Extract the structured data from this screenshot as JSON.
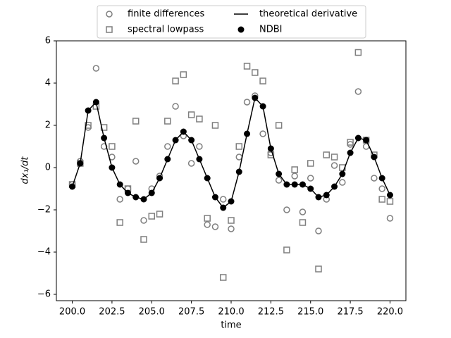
{
  "chart_data": {
    "type": "scatter",
    "x_label": "time",
    "y_label": "dx₁/dt",
    "x": [
      200.0,
      200.5,
      201.0,
      201.5,
      202.0,
      202.5,
      203.0,
      203.5,
      204.0,
      204.5,
      205.0,
      205.5,
      206.0,
      206.5,
      207.0,
      207.5,
      208.0,
      208.5,
      209.0,
      209.5,
      210.0,
      210.5,
      211.0,
      211.5,
      212.0,
      212.5,
      213.0,
      213.5,
      214.0,
      214.5,
      215.0,
      215.5,
      216.0,
      216.5,
      217.0,
      217.5,
      218.0,
      218.5,
      219.0,
      219.5,
      220.0
    ],
    "series": [
      {
        "name": "finite differences",
        "color": "#7f7f7f",
        "style": "hollow-circle",
        "values": [
          -0.8,
          0.3,
          1.9,
          4.7,
          1.0,
          0.5,
          -1.5,
          -1.0,
          0.3,
          -2.5,
          -1.0,
          -0.4,
          1.0,
          2.9,
          1.5,
          0.2,
          1.0,
          -2.7,
          -2.8,
          -1.5,
          -2.9,
          0.5,
          3.1,
          3.4,
          1.6,
          0.7,
          -0.6,
          -2.0,
          -0.4,
          -2.1,
          -0.5,
          -3.0,
          -1.5,
          0.1,
          -0.7,
          1.1,
          3.6,
          1.0,
          -0.5,
          -1.0,
          -2.4
        ]
      },
      {
        "name": "spectral lowpass",
        "color": "#7f7f7f",
        "style": "hollow-square",
        "values": [
          -0.8,
          0.2,
          2.0,
          2.9,
          1.9,
          1.0,
          -2.6,
          -1.0,
          2.2,
          -3.4,
          -2.3,
          -2.2,
          2.2,
          4.1,
          4.4,
          2.5,
          2.3,
          -2.4,
          2.0,
          -5.2,
          -2.5,
          1.0,
          4.8,
          4.5,
          4.1,
          0.6,
          2.0,
          -3.9,
          -0.1,
          -2.6,
          0.2,
          -4.8,
          0.6,
          0.5,
          0.0,
          1.2,
          5.45,
          1.3,
          0.6,
          -1.5,
          -1.6
        ]
      },
      {
        "name": "theoretical derivative",
        "color": "#000000",
        "style": "line",
        "values": [
          -0.9,
          0.2,
          2.7,
          3.1,
          1.4,
          0.0,
          -0.8,
          -1.2,
          -1.4,
          -1.5,
          -1.2,
          -0.5,
          0.4,
          1.3,
          1.7,
          1.3,
          0.4,
          -0.5,
          -1.4,
          -1.9,
          -1.6,
          -0.2,
          1.6,
          3.3,
          2.9,
          0.9,
          -0.3,
          -0.8,
          -0.8,
          -0.8,
          -1.0,
          -1.4,
          -1.3,
          -0.9,
          -0.3,
          0.7,
          1.4,
          1.3,
          0.5,
          -0.5,
          -1.3
        ]
      },
      {
        "name": "NDBI",
        "color": "#000000",
        "style": "filled-circle",
        "values": [
          -0.9,
          0.2,
          2.7,
          3.1,
          1.4,
          0.0,
          -0.8,
          -1.2,
          -1.4,
          -1.5,
          -1.2,
          -0.5,
          0.4,
          1.3,
          1.7,
          1.3,
          0.4,
          -0.5,
          -1.4,
          -1.9,
          -1.6,
          -0.2,
          1.6,
          3.3,
          2.9,
          0.9,
          -0.3,
          -0.8,
          -0.8,
          -0.8,
          -1.0,
          -1.4,
          -1.3,
          -0.9,
          -0.3,
          0.7,
          1.4,
          1.3,
          0.5,
          -0.5,
          -1.3
        ]
      }
    ],
    "xlim": [
      199.0,
      221.0
    ],
    "ylim": [
      -6.3,
      6.0
    ],
    "xticks": [
      {
        "value": 200,
        "label": "200.0"
      },
      {
        "value": 202.5,
        "label": "202.5"
      },
      {
        "value": 205,
        "label": "205.0"
      },
      {
        "value": 207.5,
        "label": "207.5"
      },
      {
        "value": 210,
        "label": "210.0"
      },
      {
        "value": 212.5,
        "label": "212.5"
      },
      {
        "value": 215,
        "label": "215.0"
      },
      {
        "value": 217.5,
        "label": "217.5"
      },
      {
        "value": 220,
        "label": "220.0"
      }
    ],
    "yticks": [
      {
        "value": -6,
        "label": "−6"
      },
      {
        "value": -4,
        "label": "−4"
      },
      {
        "value": -2,
        "label": "−2"
      },
      0,
      2,
      4,
      6
    ]
  }
}
